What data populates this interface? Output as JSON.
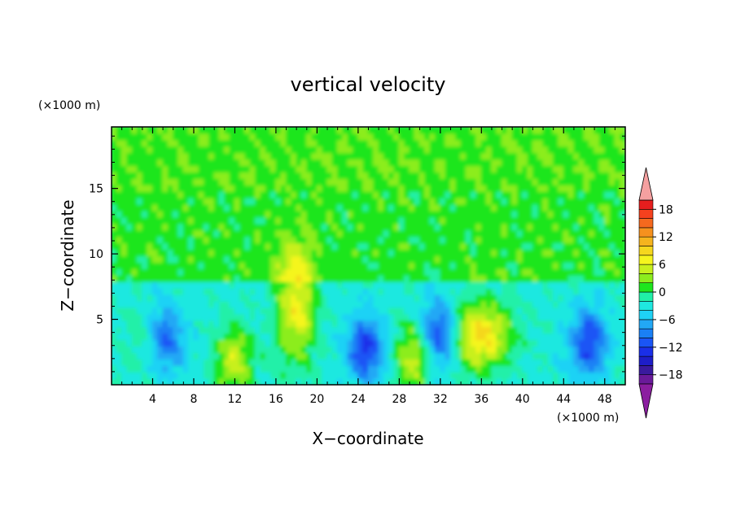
{
  "chart_data": {
    "type": "heatmap",
    "title": "vertical velocity",
    "xlabel": "X−coordinate",
    "ylabel": "Z−coordinate",
    "x_unit": "(×1000 m)",
    "y_unit": "(×1000 m)",
    "xlim": [
      0,
      50
    ],
    "ylim": [
      0,
      19.7
    ],
    "x_ticks": [
      4,
      8,
      12,
      16,
      20,
      24,
      28,
      32,
      36,
      40,
      44,
      48
    ],
    "y_ticks": [
      5,
      10,
      15
    ],
    "x_tick_labels": [
      "4",
      "8",
      "12",
      "16",
      "20",
      "24",
      "28",
      "32",
      "36",
      "40",
      "44",
      "48"
    ],
    "y_tick_labels": [
      "5",
      "10",
      "15"
    ],
    "colorbar": {
      "levels": [
        -20,
        -18,
        -16,
        -14,
        -12,
        -10,
        -8,
        -6,
        -4,
        -2,
        0,
        2,
        4,
        6,
        8,
        10,
        12,
        14,
        16,
        18,
        20
      ],
      "tick_values": [
        18,
        12,
        6,
        0,
        -6,
        -12,
        -18
      ],
      "tick_labels": [
        "18",
        "12",
        "6",
        "0",
        "−6",
        "−12",
        "−18"
      ],
      "colors": [
        "#6a1a9a",
        "#3a1a9e",
        "#1e1ec8",
        "#1a2fe8",
        "#1a55f5",
        "#1a80f5",
        "#22a8f5",
        "#1fd2f5",
        "#1fe8e0",
        "#20f0a8",
        "#1ee61e",
        "#8ced1e",
        "#c8f01e",
        "#f5f51e",
        "#f5d71e",
        "#f5b41e",
        "#f5911e",
        "#f5691e",
        "#f5411e",
        "#e61e1e"
      ],
      "under_color": "#8b1ea0",
      "over_color": "#f5a0a0"
    },
    "features": [
      {
        "x": 3.0,
        "z": 3.5,
        "w": 2.4
      },
      {
        "x": 5.3,
        "z": 3.5,
        "w": -7.5
      },
      {
        "x": 12.0,
        "z": 1.8,
        "w": 7.5
      },
      {
        "x": 18.0,
        "z": 6.0,
        "w": 9.5
      },
      {
        "x": 24.8,
        "z": 2.8,
        "w": -10.0
      },
      {
        "x": 29.5,
        "z": 2.2,
        "w": 8.5
      },
      {
        "x": 31.8,
        "z": 3.8,
        "w": -10.0
      },
      {
        "x": 36.0,
        "z": 3.8,
        "w": 11.0
      },
      {
        "x": 46.5,
        "z": 3.2,
        "w": -9.5
      }
    ]
  }
}
